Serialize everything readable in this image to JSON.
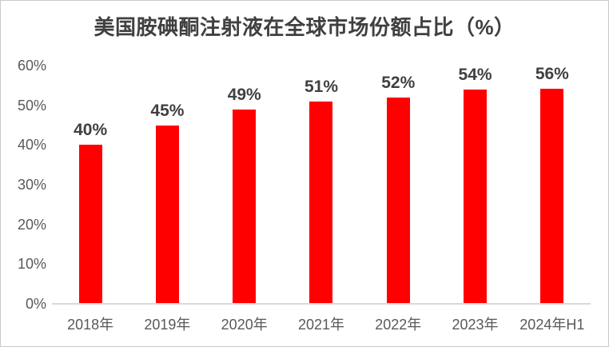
{
  "title": "美国胺碘酮注射液在全球市场份额占比（%）",
  "chart_data": {
    "type": "bar",
    "title": "美国胺碘酮注射液在全球市场份额占比（%）",
    "categories": [
      "2018年",
      "2019年",
      "2020年",
      "2021年",
      "2022年",
      "2023年",
      "2024年H1"
    ],
    "values": [
      40,
      45,
      49,
      51,
      52,
      54,
      56
    ],
    "data_labels": [
      "40%",
      "45%",
      "49%",
      "51%",
      "52%",
      "54%",
      "56%"
    ],
    "xlabel": "",
    "ylabel": "",
    "ylim": [
      0,
      60
    ],
    "y_ticks": [
      {
        "value": 0,
        "label": "0%"
      },
      {
        "value": 10,
        "label": "10%"
      },
      {
        "value": 20,
        "label": "20%"
      },
      {
        "value": 30,
        "label": "30%"
      },
      {
        "value": 40,
        "label": "40%"
      },
      {
        "value": 50,
        "label": "50%"
      },
      {
        "value": 60,
        "label": "60%"
      }
    ],
    "grid": false,
    "legend_position": "none",
    "colors": {
      "bar": "#FF0000",
      "title_text": "#404040",
      "value_label_text": "#404040",
      "axis_label_text": "#595959",
      "axis_line": "#D9D9D9",
      "background": "#FFFFFF",
      "border": "#C9C9C9"
    }
  }
}
